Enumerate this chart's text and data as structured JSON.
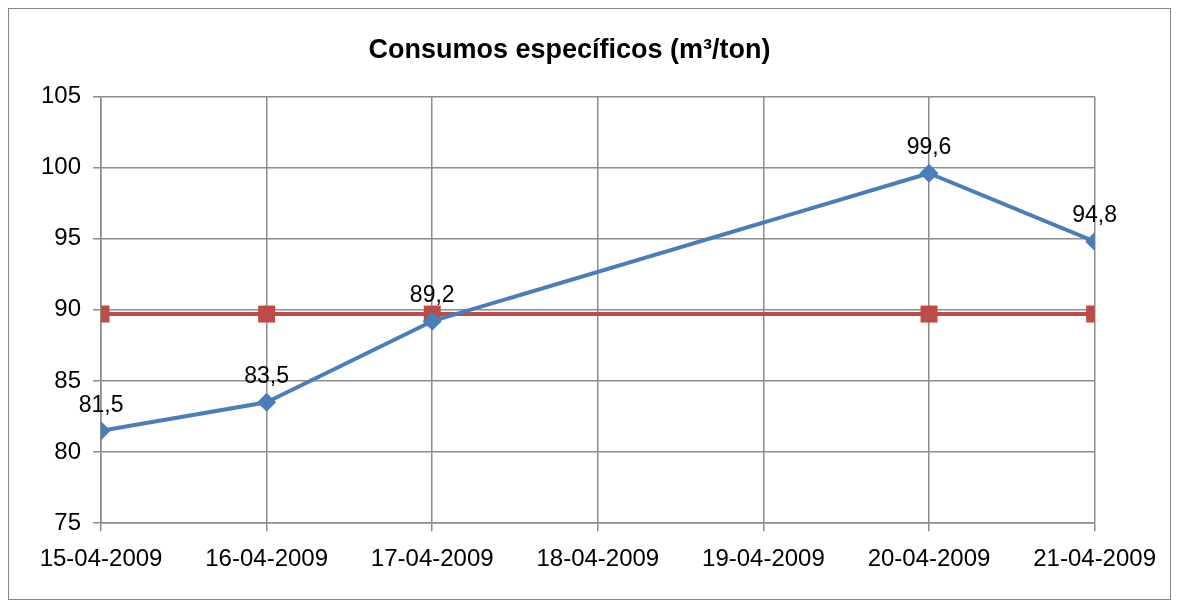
{
  "chart_data": {
    "type": "line",
    "title": "Consumos específicos (m³/ton)",
    "x": [
      "2009-04-15",
      "2009-04-16",
      "2009-04-17",
      "2009-04-20",
      "2009-04-21"
    ],
    "xlim": [
      "2009-04-15",
      "2009-04-21"
    ],
    "xticks": [
      {
        "value": "2009-04-15",
        "label": "15-04-2009"
      },
      {
        "value": "2009-04-16",
        "label": "16-04-2009"
      },
      {
        "value": "2009-04-17",
        "label": "17-04-2009"
      },
      {
        "value": "2009-04-18",
        "label": "18-04-2009"
      },
      {
        "value": "2009-04-19",
        "label": "19-04-2009"
      },
      {
        "value": "2009-04-20",
        "label": "20-04-2009"
      },
      {
        "value": "2009-04-21",
        "label": "21-04-2009"
      }
    ],
    "ylim": [
      75,
      105
    ],
    "yticks": [
      75,
      80,
      85,
      90,
      95,
      100,
      105
    ],
    "grid": true,
    "series": [
      {
        "color": "#4a7ebb",
        "marker": "diamond",
        "values": [
          81.5,
          83.5,
          89.2,
          99.6,
          94.8
        ],
        "value_labels": [
          "81,5",
          "83,5",
          "89,2",
          "99,6",
          "94,8"
        ]
      },
      {
        "color": "#be4b48",
        "marker": "square",
        "values": [
          89.7,
          89.7,
          89.7,
          89.7,
          89.7
        ]
      }
    ]
  }
}
